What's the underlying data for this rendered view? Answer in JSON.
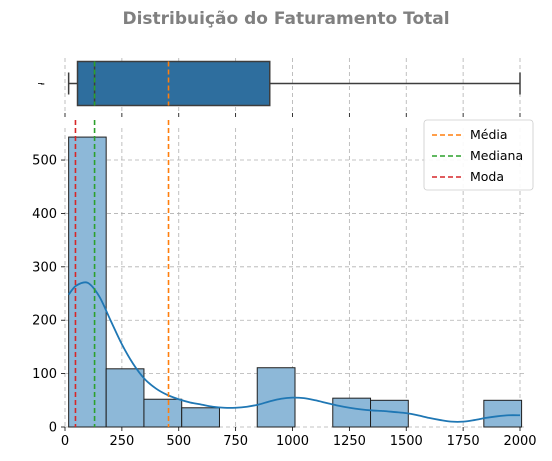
{
  "chart_data": {
    "type": "histogram",
    "title": "Distribuição do Faturamento Total",
    "xlim": [
      0,
      2000
    ],
    "ylim": [
      0,
      560
    ],
    "x_ticks": [
      0,
      250,
      500,
      750,
      1000,
      1250,
      1500,
      1750,
      2000
    ],
    "y_ticks": [
      0,
      100,
      200,
      300,
      400,
      500
    ],
    "grid": true,
    "legend_position": "top-right",
    "histogram": {
      "bin_edges": [
        16,
        181,
        347,
        513,
        679,
        845,
        1011,
        1177,
        1343,
        1509,
        1675,
        1841,
        2007
      ],
      "counts": [
        543,
        109,
        52,
        36,
        0,
        111,
        0,
        54,
        50,
        0,
        0,
        50
      ],
      "color": "#8db8d8",
      "edge_color": "#1f1f1f"
    },
    "kde": {
      "color": "#1f77b4",
      "x": [
        16,
        50,
        100,
        150,
        200,
        250,
        300,
        350,
        400,
        450,
        500,
        550,
        600,
        650,
        700,
        750,
        800,
        850,
        900,
        950,
        1000,
        1050,
        1100,
        1150,
        1200,
        1250,
        1300,
        1350,
        1400,
        1450,
        1500,
        1550,
        1600,
        1650,
        1700,
        1750,
        1800,
        1850,
        1900,
        1950,
        2000
      ],
      "y": [
        248,
        265,
        270,
        245,
        200,
        155,
        118,
        90,
        72,
        60,
        52,
        46,
        42,
        38,
        36,
        36,
        38,
        42,
        48,
        53,
        55,
        54,
        50,
        45,
        40,
        36,
        33,
        31,
        30,
        28,
        26,
        22,
        17,
        13,
        10,
        10,
        13,
        17,
        20,
        22,
        22
      ]
    },
    "reference_lines": [
      {
        "name": "Média",
        "value": 455,
        "color": "#ff7f0e"
      },
      {
        "name": "Mediana",
        "value": 130,
        "color": "#2ca02c"
      },
      {
        "name": "Moda",
        "value": 46,
        "color": "#d62728"
      }
    ],
    "boxplot": {
      "whisker_low": 16,
      "q1": 55,
      "median": 130,
      "q3": 900,
      "whisker_high": 2000,
      "color": "#2e6e9e",
      "y_tick_label": "-"
    }
  }
}
